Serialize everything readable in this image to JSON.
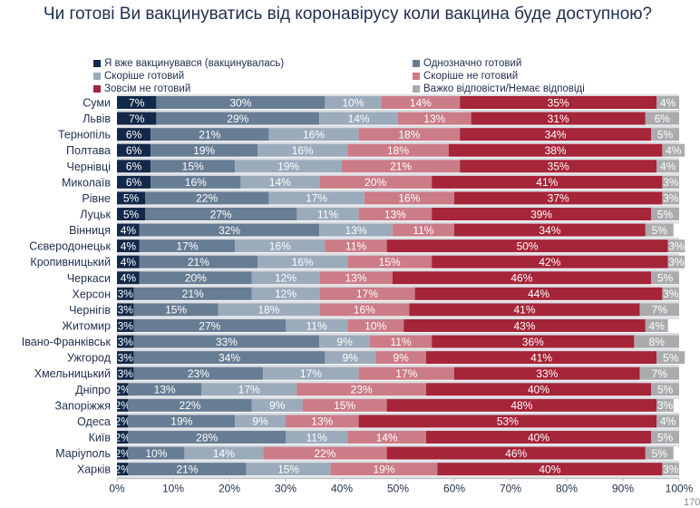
{
  "chart_data": {
    "type": "bar",
    "orientation": "horizontal",
    "stacked": true,
    "title": "Чи готові Ви вакцинуватись від коронавірусу коли вакцина буде доступною?",
    "xlim": [
      0,
      100
    ],
    "xticks": [
      "0%",
      "10%",
      "20%",
      "30%",
      "40%",
      "50%",
      "60%",
      "70%",
      "80%",
      "90%",
      "100%"
    ],
    "legend_position": "top",
    "categories": [
      "Суми",
      "Львів",
      "Тернопіль",
      "Полтава",
      "Чернівці",
      "Миколаїв",
      "Рівне",
      "Луцьк",
      "Вінниця",
      "Сєверодонецьк",
      "Кропивницький",
      "Черкаси",
      "Херсон",
      "Чернігів",
      "Житомир",
      "Івано-Франківськ",
      "Ужгород",
      "Хмельницький",
      "Дніпро",
      "Запоріжжя",
      "Одеса",
      "Київ",
      "Маріуполь",
      "Харків"
    ],
    "series": [
      {
        "name": "Я вже вакцинувався (вакцинувалась)",
        "color": "#12294a",
        "values": [
          7,
          7,
          6,
          6,
          6,
          6,
          5,
          5,
          4,
          4,
          4,
          4,
          3,
          3,
          3,
          3,
          3,
          3,
          2,
          2,
          2,
          2,
          2,
          2
        ]
      },
      {
        "name": "Однозначно готовий",
        "color": "#677d93",
        "values": [
          30,
          29,
          21,
          19,
          15,
          16,
          22,
          27,
          32,
          17,
          21,
          20,
          21,
          15,
          27,
          33,
          34,
          23,
          13,
          22,
          19,
          28,
          10,
          21
        ]
      },
      {
        "name": "Скоріше готовий",
        "color": "#9babbb",
        "values": [
          10,
          14,
          16,
          16,
          19,
          14,
          17,
          11,
          13,
          16,
          16,
          12,
          12,
          18,
          11,
          9,
          9,
          17,
          17,
          9,
          9,
          11,
          14,
          15
        ]
      },
      {
        "name": "Скоріше не готовий",
        "color": "#cb7c87",
        "values": [
          14,
          13,
          18,
          18,
          21,
          20,
          16,
          13,
          11,
          11,
          15,
          13,
          17,
          16,
          10,
          11,
          9,
          17,
          23,
          15,
          13,
          14,
          22,
          19
        ]
      },
      {
        "name": "Зовсім не готовий",
        "color": "#a52539",
        "values": [
          35,
          31,
          34,
          38,
          35,
          41,
          37,
          39,
          34,
          50,
          42,
          46,
          44,
          41,
          43,
          36,
          41,
          33,
          40,
          48,
          53,
          40,
          46,
          40
        ]
      },
      {
        "name": "Важко відповісти/Немає відповіді",
        "color": "#ababad",
        "values": [
          4,
          6,
          5,
          4,
          4,
          3,
          3,
          5,
          5,
          3,
          3,
          5,
          3,
          7,
          4,
          8,
          5,
          7,
          5,
          3,
          4,
          5,
          5,
          3
        ]
      }
    ]
  },
  "page_number": "170"
}
